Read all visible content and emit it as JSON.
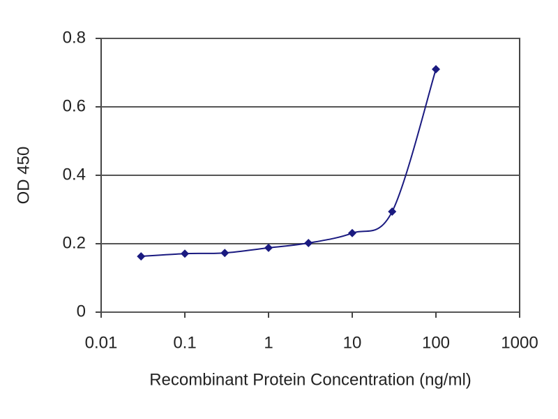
{
  "chart_data": {
    "type": "line",
    "x_label": "Recombinant Protein Concentration (ng/ml)",
    "y_label": "OD 450",
    "x": [
      0.03,
      0.1,
      0.3,
      1,
      3,
      10,
      30,
      100
    ],
    "series": [
      {
        "color": "#1a1a80",
        "values": [
          0.163,
          0.171,
          0.173,
          0.188,
          0.202,
          0.231,
          0.294,
          0.71
        ]
      }
    ],
    "xlim": [
      0.01,
      1000
    ],
    "xticks": [
      0.01,
      0.1,
      1,
      10,
      100,
      1000
    ],
    "log_x": true,
    "ylim": [
      0,
      0.8
    ],
    "yticks": [
      0,
      0.2,
      0.4,
      0.6,
      0.8
    ],
    "grid": true
  }
}
